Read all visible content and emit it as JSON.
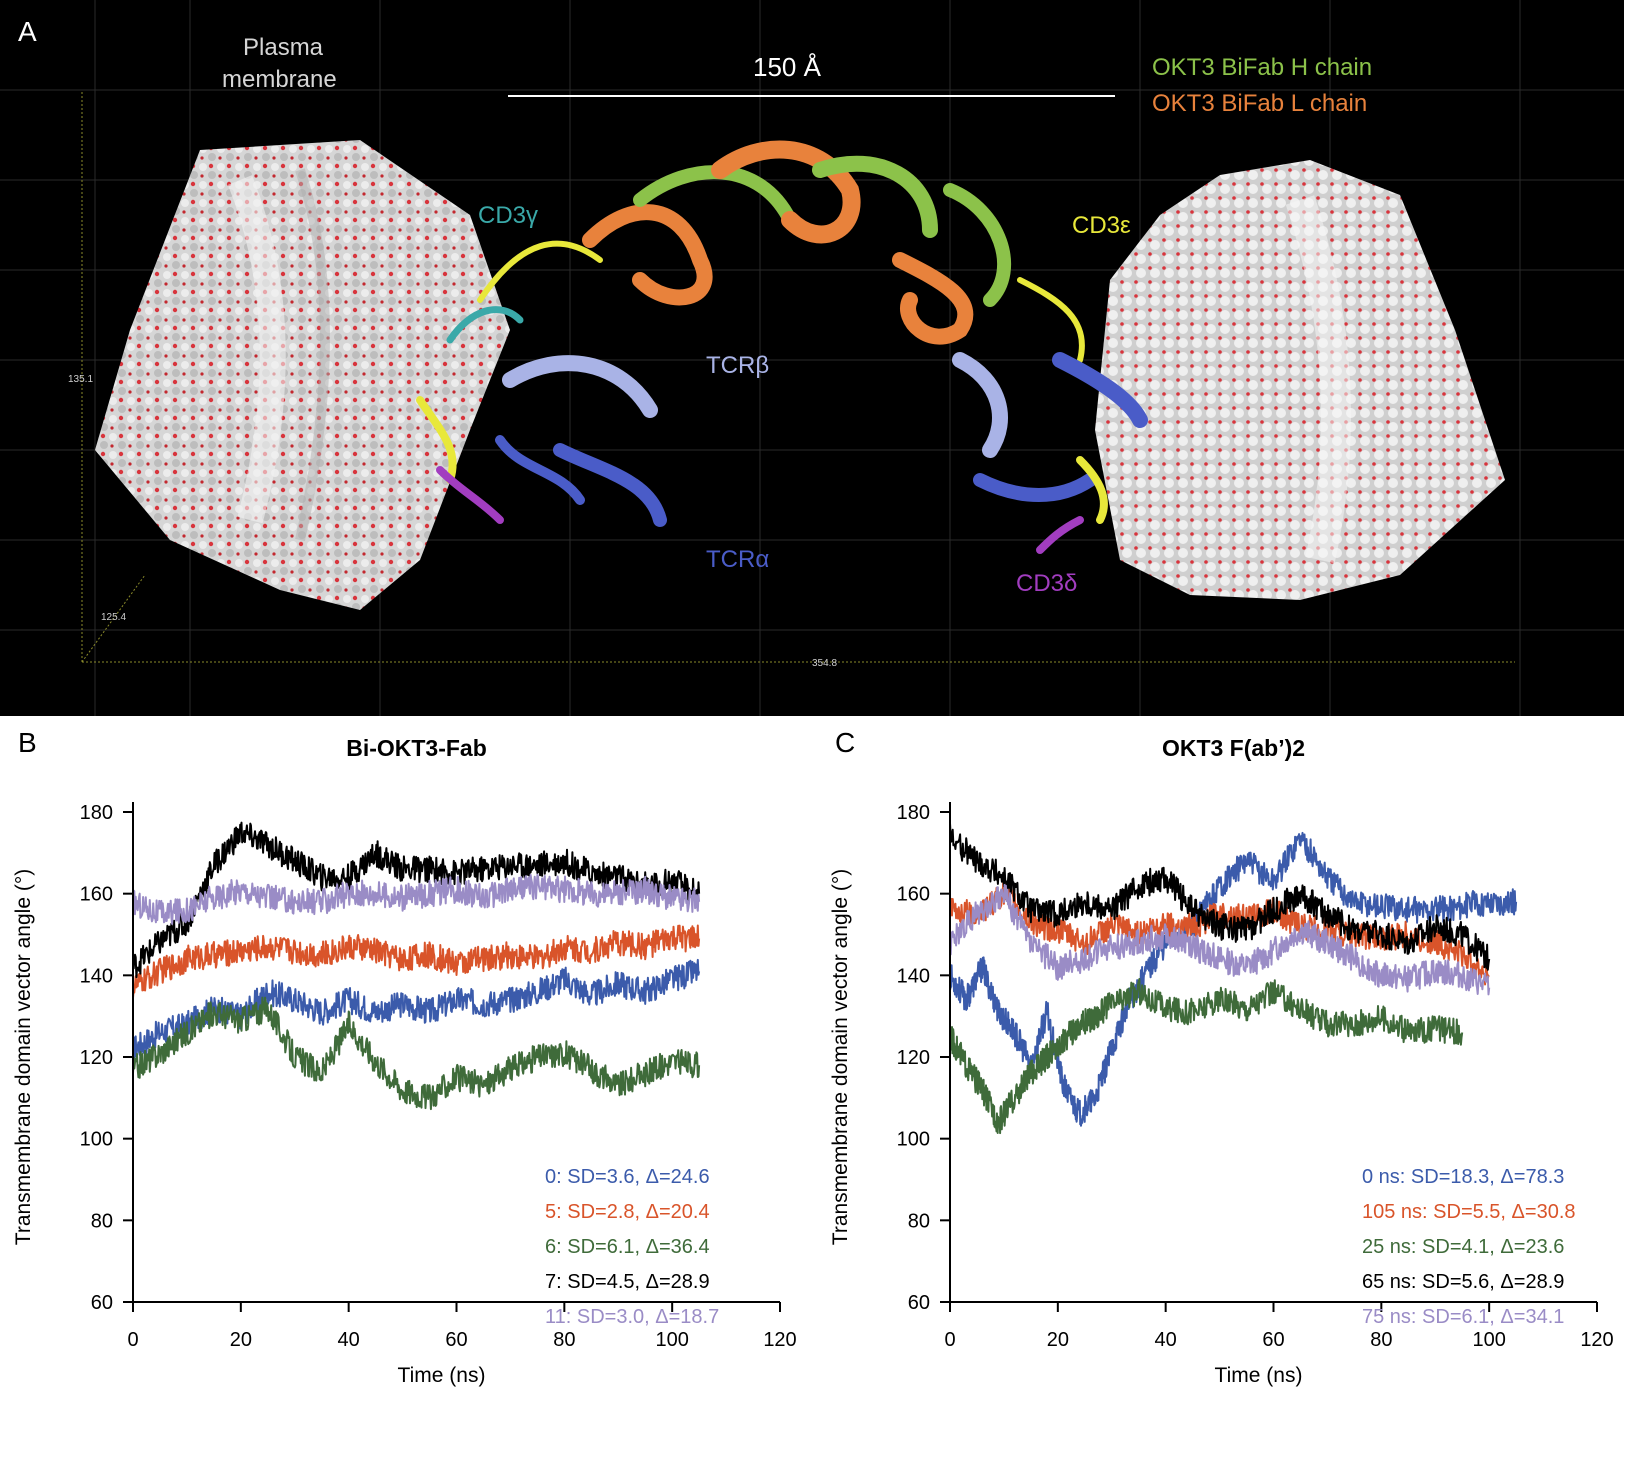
{
  "panelA": {
    "letter": "A",
    "labels": {
      "plasma_membrane_line1": "Plasma",
      "plasma_membrane_line2": "membrane",
      "scale_bar": "150 Å",
      "h_chain": "OKT3 BiFab H chain",
      "l_chain": "OKT3 BiFab L chain",
      "cd3g": "CD3γ",
      "cd3e": "CD3ε",
      "tcrb": "TCRβ",
      "tcra": "TCRα",
      "cd3d": "CD3δ"
    },
    "axis_readouts": {
      "y": "135.1",
      "z": "125.4",
      "x": "354.8"
    },
    "colors": {
      "h_chain": "#8cc24a",
      "l_chain": "#e8823c",
      "cd3g": "#3aa9a9",
      "cd3e": "#e8e83a",
      "tcrb": "#a9b3e6",
      "tcra": "#4a5cc8",
      "cd3d": "#a23dc0",
      "membrane": "#d8d8d8",
      "headgroups": "#d8343c"
    }
  },
  "chart_data": [
    {
      "panel": "B",
      "type": "line",
      "title": "Bi-OKT3-Fab",
      "xlabel": "Time (ns)",
      "ylabel": "Transmembrane domain vector angle (°)",
      "xlim": [
        0,
        120
      ],
      "ylim": [
        60,
        180
      ],
      "xticks": [
        0,
        20,
        40,
        60,
        80,
        100,
        120
      ],
      "yticks": [
        60,
        80,
        100,
        120,
        140,
        160,
        180
      ],
      "series": [
        {
          "name": "0: SD=3.6, Δ=24.6",
          "color": "#3b5bab",
          "x": [
            0,
            5,
            10,
            15,
            20,
            25,
            30,
            35,
            40,
            45,
            50,
            55,
            60,
            65,
            70,
            75,
            80,
            85,
            90,
            95,
            100,
            105
          ],
          "y": [
            122,
            126,
            128,
            132,
            130,
            136,
            134,
            131,
            134,
            131,
            133,
            131,
            134,
            133,
            134,
            136,
            139,
            135,
            138,
            136,
            139,
            141
          ]
        },
        {
          "name": "5: SD=2.8, Δ=20.4",
          "color": "#d9542a",
          "x": [
            0,
            5,
            10,
            15,
            20,
            25,
            30,
            35,
            40,
            45,
            50,
            55,
            60,
            65,
            70,
            75,
            80,
            85,
            90,
            95,
            100,
            105
          ],
          "y": [
            137,
            141,
            144,
            145,
            146,
            147,
            146,
            145,
            147,
            146,
            144,
            145,
            143,
            144,
            145,
            144,
            147,
            146,
            148,
            147,
            149,
            149
          ]
        },
        {
          "name": "6: SD=6.1, Δ=36.4",
          "color": "#3f6b3a",
          "x": [
            0,
            5,
            10,
            15,
            20,
            25,
            30,
            35,
            40,
            45,
            50,
            55,
            60,
            65,
            70,
            75,
            80,
            85,
            90,
            95,
            100,
            105
          ],
          "y": [
            117,
            121,
            126,
            131,
            129,
            132,
            120,
            116,
            128,
            119,
            112,
            110,
            115,
            113,
            117,
            120,
            121,
            117,
            113,
            116,
            119,
            118
          ]
        },
        {
          "name": "7: SD=4.5, Δ=28.9",
          "color": "#000000",
          "x": [
            0,
            5,
            10,
            15,
            20,
            25,
            30,
            35,
            40,
            45,
            50,
            55,
            60,
            65,
            70,
            75,
            80,
            85,
            90,
            95,
            100,
            105
          ],
          "y": [
            142,
            148,
            153,
            167,
            175,
            172,
            168,
            164,
            164,
            170,
            166,
            166,
            165,
            166,
            167,
            167,
            168,
            165,
            164,
            162,
            163,
            160
          ]
        },
        {
          "name": "11: SD=3.0, Δ=18.7",
          "color": "#9a8cc6",
          "x": [
            0,
            5,
            10,
            15,
            20,
            25,
            30,
            35,
            40,
            45,
            50,
            55,
            60,
            65,
            70,
            75,
            80,
            85,
            90,
            95,
            100,
            105
          ],
          "y": [
            158,
            155,
            156,
            159,
            161,
            159,
            158,
            158,
            160,
            160,
            159,
            160,
            161,
            159,
            161,
            162,
            161,
            160,
            160,
            161,
            159,
            158
          ]
        }
      ]
    },
    {
      "panel": "C",
      "type": "line",
      "title": "OKT3 F(ab’)2",
      "xlabel": "Time (ns)",
      "ylabel": "Transmembrane domain vector angle (°)",
      "xlim": [
        0,
        120
      ],
      "ylim": [
        60,
        180
      ],
      "xticks": [
        0,
        20,
        40,
        60,
        80,
        100,
        120
      ],
      "yticks": [
        60,
        80,
        100,
        120,
        140,
        160,
        180
      ],
      "series": [
        {
          "name": "0 ns: SD=18.3, Δ=78.3",
          "color": "#3b5bab",
          "x": [
            0,
            3,
            6,
            9,
            12,
            15,
            18,
            21,
            24,
            27,
            30,
            33,
            36,
            40,
            45,
            50,
            55,
            60,
            65,
            70,
            75,
            80,
            85,
            90,
            95,
            100,
            105
          ],
          "y": [
            140,
            134,
            142,
            131,
            126,
            118,
            131,
            113,
            106,
            110,
            122,
            133,
            140,
            148,
            152,
            162,
            168,
            163,
            174,
            164,
            158,
            157,
            156,
            156,
            157,
            158,
            158
          ]
        },
        {
          "name": "105 ns: SD=5.5, Δ=30.8",
          "color": "#d9542a",
          "x": [
            0,
            5,
            10,
            15,
            20,
            25,
            30,
            35,
            40,
            45,
            50,
            55,
            60,
            65,
            70,
            75,
            80,
            85,
            90,
            95,
            100
          ],
          "y": [
            156,
            155,
            160,
            153,
            151,
            148,
            152,
            150,
            153,
            152,
            155,
            154,
            156,
            152,
            151,
            150,
            149,
            150,
            148,
            145,
            140
          ]
        },
        {
          "name": "25 ns: SD=4.1, Δ=23.6",
          "color": "#3f6b3a",
          "x": [
            0,
            3,
            6,
            9,
            12,
            15,
            18,
            21,
            24,
            27,
            30,
            35,
            40,
            45,
            50,
            55,
            60,
            65,
            70,
            75,
            80,
            85,
            90,
            95
          ],
          "y": [
            125,
            118,
            112,
            104,
            110,
            116,
            120,
            124,
            128,
            130,
            133,
            136,
            132,
            131,
            134,
            132,
            136,
            132,
            128,
            128,
            130,
            126,
            127,
            126
          ]
        },
        {
          "name": "65 ns: SD=5.6, Δ=28.9",
          "color": "#000000",
          "x": [
            0,
            5,
            10,
            15,
            20,
            25,
            30,
            35,
            40,
            45,
            50,
            55,
            60,
            65,
            70,
            75,
            80,
            85,
            90,
            95,
            100
          ],
          "y": [
            174,
            168,
            164,
            156,
            155,
            158,
            156,
            162,
            164,
            156,
            152,
            151,
            156,
            160,
            155,
            151,
            150,
            148,
            152,
            150,
            144
          ]
        },
        {
          "name": "75 ns: SD=6.1, Δ=34.1",
          "color": "#9a8cc6",
          "x": [
            0,
            5,
            10,
            15,
            20,
            25,
            30,
            35,
            40,
            45,
            50,
            55,
            60,
            65,
            70,
            75,
            80,
            85,
            90,
            95,
            100
          ],
          "y": [
            148,
            155,
            160,
            148,
            142,
            144,
            147,
            148,
            150,
            147,
            144,
            142,
            146,
            151,
            148,
            144,
            140,
            139,
            141,
            140,
            137
          ]
        }
      ]
    }
  ]
}
